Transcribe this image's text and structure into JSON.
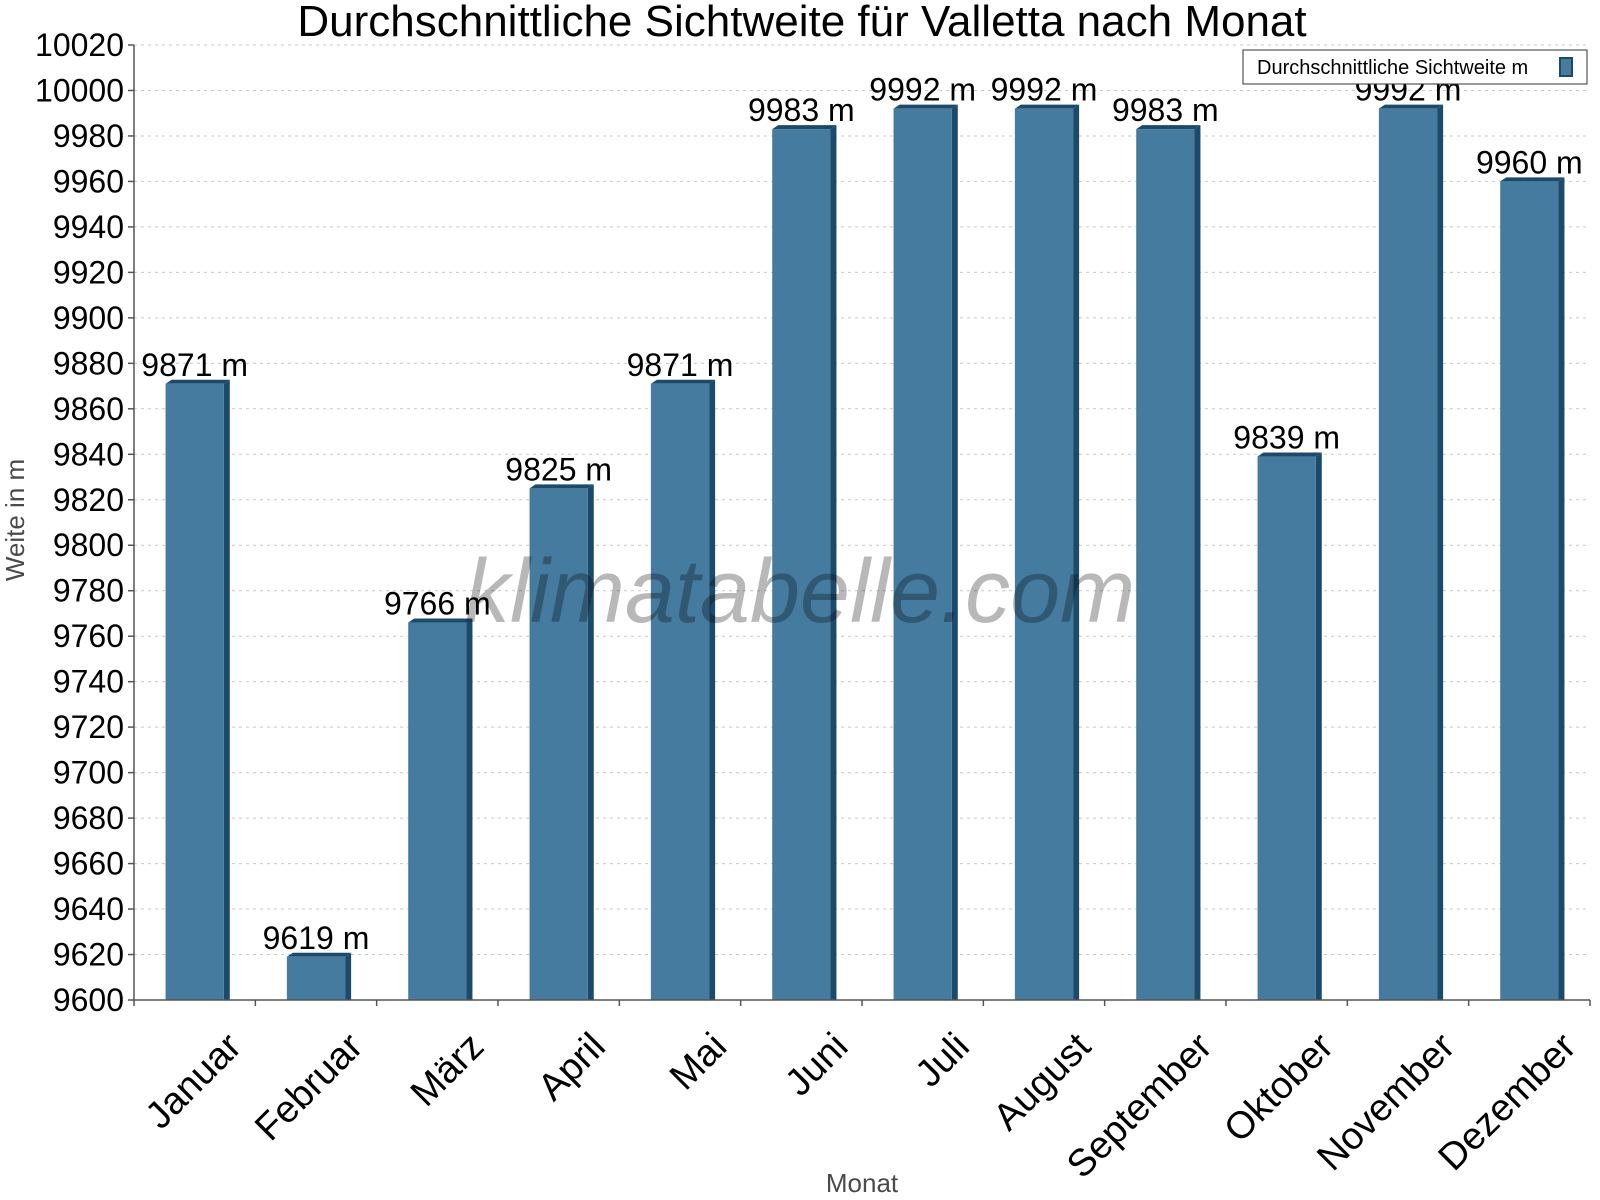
{
  "chart_data": {
    "type": "bar",
    "title": "Durchschnittliche Sichtweite für Valletta nach Monat",
    "xlabel": "Monat",
    "ylabel": "Weite in m",
    "ylim": [
      9600,
      10020
    ],
    "ytick_step": 20,
    "grid": true,
    "legend_position": "top-right",
    "categories": [
      "Januar",
      "Februar",
      "März",
      "April",
      "Mai",
      "Juni",
      "Juli",
      "August",
      "September",
      "Oktober",
      "November",
      "Dezember"
    ],
    "series": [
      {
        "name": "Durchschnittliche Sichtweite m",
        "values": [
          9871,
          9619,
          9766,
          9825,
          9871,
          9983,
          9992,
          9992,
          9983,
          9839,
          9992,
          9960
        ],
        "data_labels": [
          "9871 m",
          "9619 m",
          "9766 m",
          "9825 m",
          "9871 m",
          "9983 m",
          "9992 m",
          "9992 m",
          "9983 m",
          "9839 m",
          "9992 m",
          "9960 m"
        ],
        "color": "#447b9e",
        "edge_color": "#1c4a6b"
      }
    ],
    "watermark": "klimatabelle.com"
  }
}
